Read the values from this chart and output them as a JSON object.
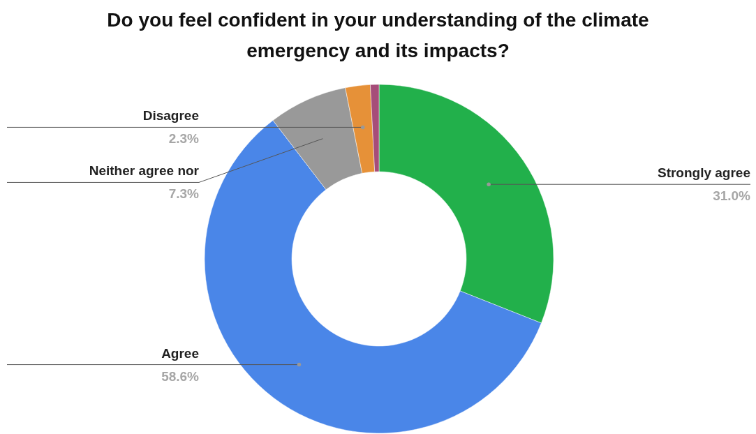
{
  "chart_data": {
    "type": "donut",
    "title": "Do you feel confident in your understanding of the climate emergency and its impacts?",
    "categories": [
      "Strongly agree",
      "Agree",
      "Neither agree nor",
      "Disagree",
      null
    ],
    "values": [
      31.0,
      58.6,
      7.3,
      2.3,
      0.8
    ],
    "colors": [
      "#22b04b",
      "#4a86e8",
      "#999999",
      "#e69138",
      "#a64d79"
    ],
    "value_labels": [
      "31.0%",
      "58.6%",
      "7.3%",
      "2.3%",
      null
    ]
  }
}
